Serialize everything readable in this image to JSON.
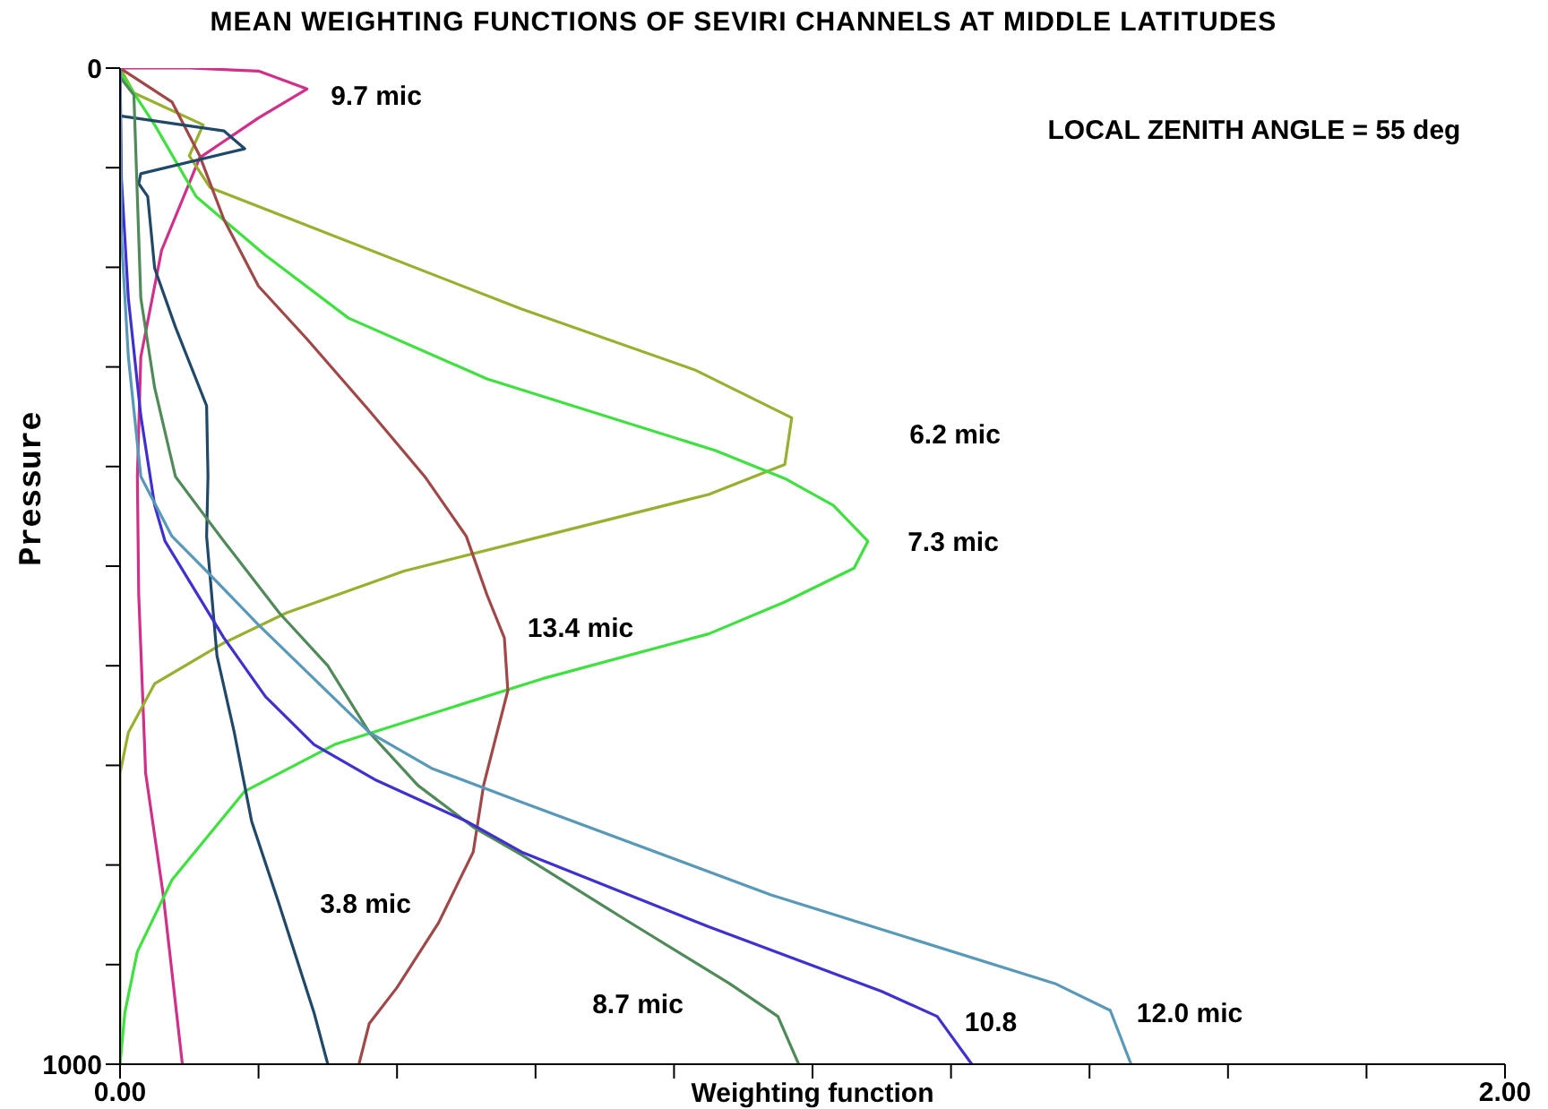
{
  "chart_data": {
    "type": "line",
    "title": "MEAN WEIGHTING FUNCTIONS OF SEVIRI CHANNELS AT MIDDLE LATITUDES",
    "xlabel": "Weighting function",
    "ylabel": "Pressure",
    "xlim": [
      0,
      2
    ],
    "xticks": [
      {
        "value": 0,
        "label": "0.00"
      },
      {
        "value": 0.2,
        "label": null
      },
      {
        "value": 0.4,
        "label": null
      },
      {
        "value": 0.6,
        "label": null
      },
      {
        "value": 0.8,
        "label": null
      },
      {
        "value": 1,
        "label": null
      },
      {
        "value": 1.2,
        "label": null
      },
      {
        "value": 1.4,
        "label": null
      },
      {
        "value": 1.6,
        "label": null
      },
      {
        "value": 1.8,
        "label": null
      },
      {
        "value": 2,
        "label": "2.00"
      }
    ],
    "ylim": [
      1000,
      0
    ],
    "yticks": [
      0,
      {
        "value": 100,
        "label": null
      },
      {
        "value": 200,
        "label": null
      },
      {
        "value": 300,
        "label": null
      },
      {
        "value": 400,
        "label": null
      },
      {
        "value": 500,
        "label": null
      },
      {
        "value": 600,
        "label": null
      },
      {
        "value": 700,
        "label": null
      },
      {
        "value": 800,
        "label": null
      },
      {
        "value": 900,
        "label": null
      },
      1000
    ],
    "grid": false,
    "legend": false,
    "marker": "none",
    "line_style": "solid",
    "series": [
      {
        "color": "#d0308a",
        "x": [
          0,
          0.1,
          0.2,
          0.27,
          0.2,
          0.115,
          0.06,
          0.03,
          0.025,
          0.027,
          0.037,
          0.062,
          0.09
        ],
        "values": [
          0,
          0,
          3,
          21,
          50,
          90,
          183,
          290,
          410,
          529,
          708,
          828,
          1000
        ]
      },
      {
        "color": "#98b030",
        "x": [
          0,
          0.02,
          0.12,
          0.1,
          0.13,
          0.58,
          0.83,
          0.97,
          0.96,
          0.85,
          0.61,
          0.41,
          0.24,
          0.15,
          0.05,
          0.012,
          0,
          0
        ],
        "values": [
          0,
          25,
          57,
          88,
          120,
          242,
          303,
          351,
          398,
          428,
          470,
          505,
          547,
          577,
          618,
          667,
          708,
          1000
        ]
      },
      {
        "color": "#40e040",
        "x": [
          0,
          0.05,
          0.11,
          0.21,
          0.33,
          0.53,
          0.86,
          0.96,
          1.03,
          1.08,
          1.06,
          0.96,
          0.85,
          0.61,
          0.31,
          0.18,
          0.075,
          0.025,
          0.007,
          0
        ],
        "values": [
          4,
          57,
          129,
          188,
          251,
          312,
          384,
          412,
          439,
          475,
          502,
          536,
          568,
          613,
          679,
          726,
          815,
          887,
          948,
          1000
        ]
      },
      {
        "color": "#a04848",
        "x": [
          0,
          0.075,
          0.115,
          0.15,
          0.2,
          0.27,
          0.36,
          0.44,
          0.5,
          0.53,
          0.555,
          0.56,
          0.54,
          0.525,
          0.51,
          0.46,
          0.4,
          0.36,
          0.345
        ],
        "values": [
          0,
          34,
          88,
          152,
          219,
          272,
          344,
          410,
          470,
          529,
          572,
          625,
          679,
          720,
          787,
          858,
          923,
          959,
          1000
        ]
      },
      {
        "color": "#204868",
        "x": [
          0,
          0.15,
          0.18,
          0.03,
          0.027,
          0.04,
          0.05,
          0.08,
          0.125,
          0.127,
          0.125,
          0.14,
          0.165,
          0.19,
          0.23,
          0.28,
          0.3
        ],
        "values": [
          48,
          63,
          81,
          106,
          116,
          129,
          201,
          260,
          339,
          410,
          470,
          590,
          667,
          756,
          840,
          948,
          1000
        ]
      },
      {
        "color": "#508a58",
        "x": [
          0,
          0.02,
          0.025,
          0.03,
          0.05,
          0.08,
          0.125,
          0.15,
          0.23,
          0.3,
          0.36,
          0.43,
          0.51,
          0.58,
          0.73,
          0.88,
          0.95,
          0.98
        ],
        "values": [
          9,
          27,
          129,
          231,
          321,
          410,
          452,
          475,
          547,
          600,
          667,
          720,
          762,
          790,
          855,
          919,
          952,
          1000
        ]
      },
      {
        "color": "#4030d0",
        "x": [
          0,
          0.002,
          0.012,
          0.03,
          0.05,
          0.065,
          0.15,
          0.21,
          0.28,
          0.37,
          0.5,
          0.58,
          0.85,
          1.1,
          1.18,
          1.23
        ],
        "values": [
          0,
          111,
          231,
          349,
          439,
          475,
          572,
          631,
          679,
          715,
          756,
          787,
          862,
          927,
          952,
          1000
        ]
      },
      {
        "color": "#5898b8",
        "x": [
          0,
          0.002,
          0.012,
          0.03,
          0.075,
          0.125,
          0.2,
          0.28,
          0.36,
          0.45,
          0.58,
          0.94,
          1.35,
          1.43,
          1.46
        ],
        "values": [
          0,
          170,
          290,
          410,
          470,
          505,
          559,
          613,
          667,
          703,
          737,
          830,
          919,
          946,
          1000
        ]
      }
    ],
    "annotations": [
      "9.7 mic",
      "6.2 mic",
      "7.3 mic",
      "13.4 mic",
      "3.8 mic",
      "8.7 mic",
      "10.8",
      "12.0 mic",
      "LOCAL ZENITH ANGLE = 55 deg"
    ]
  }
}
